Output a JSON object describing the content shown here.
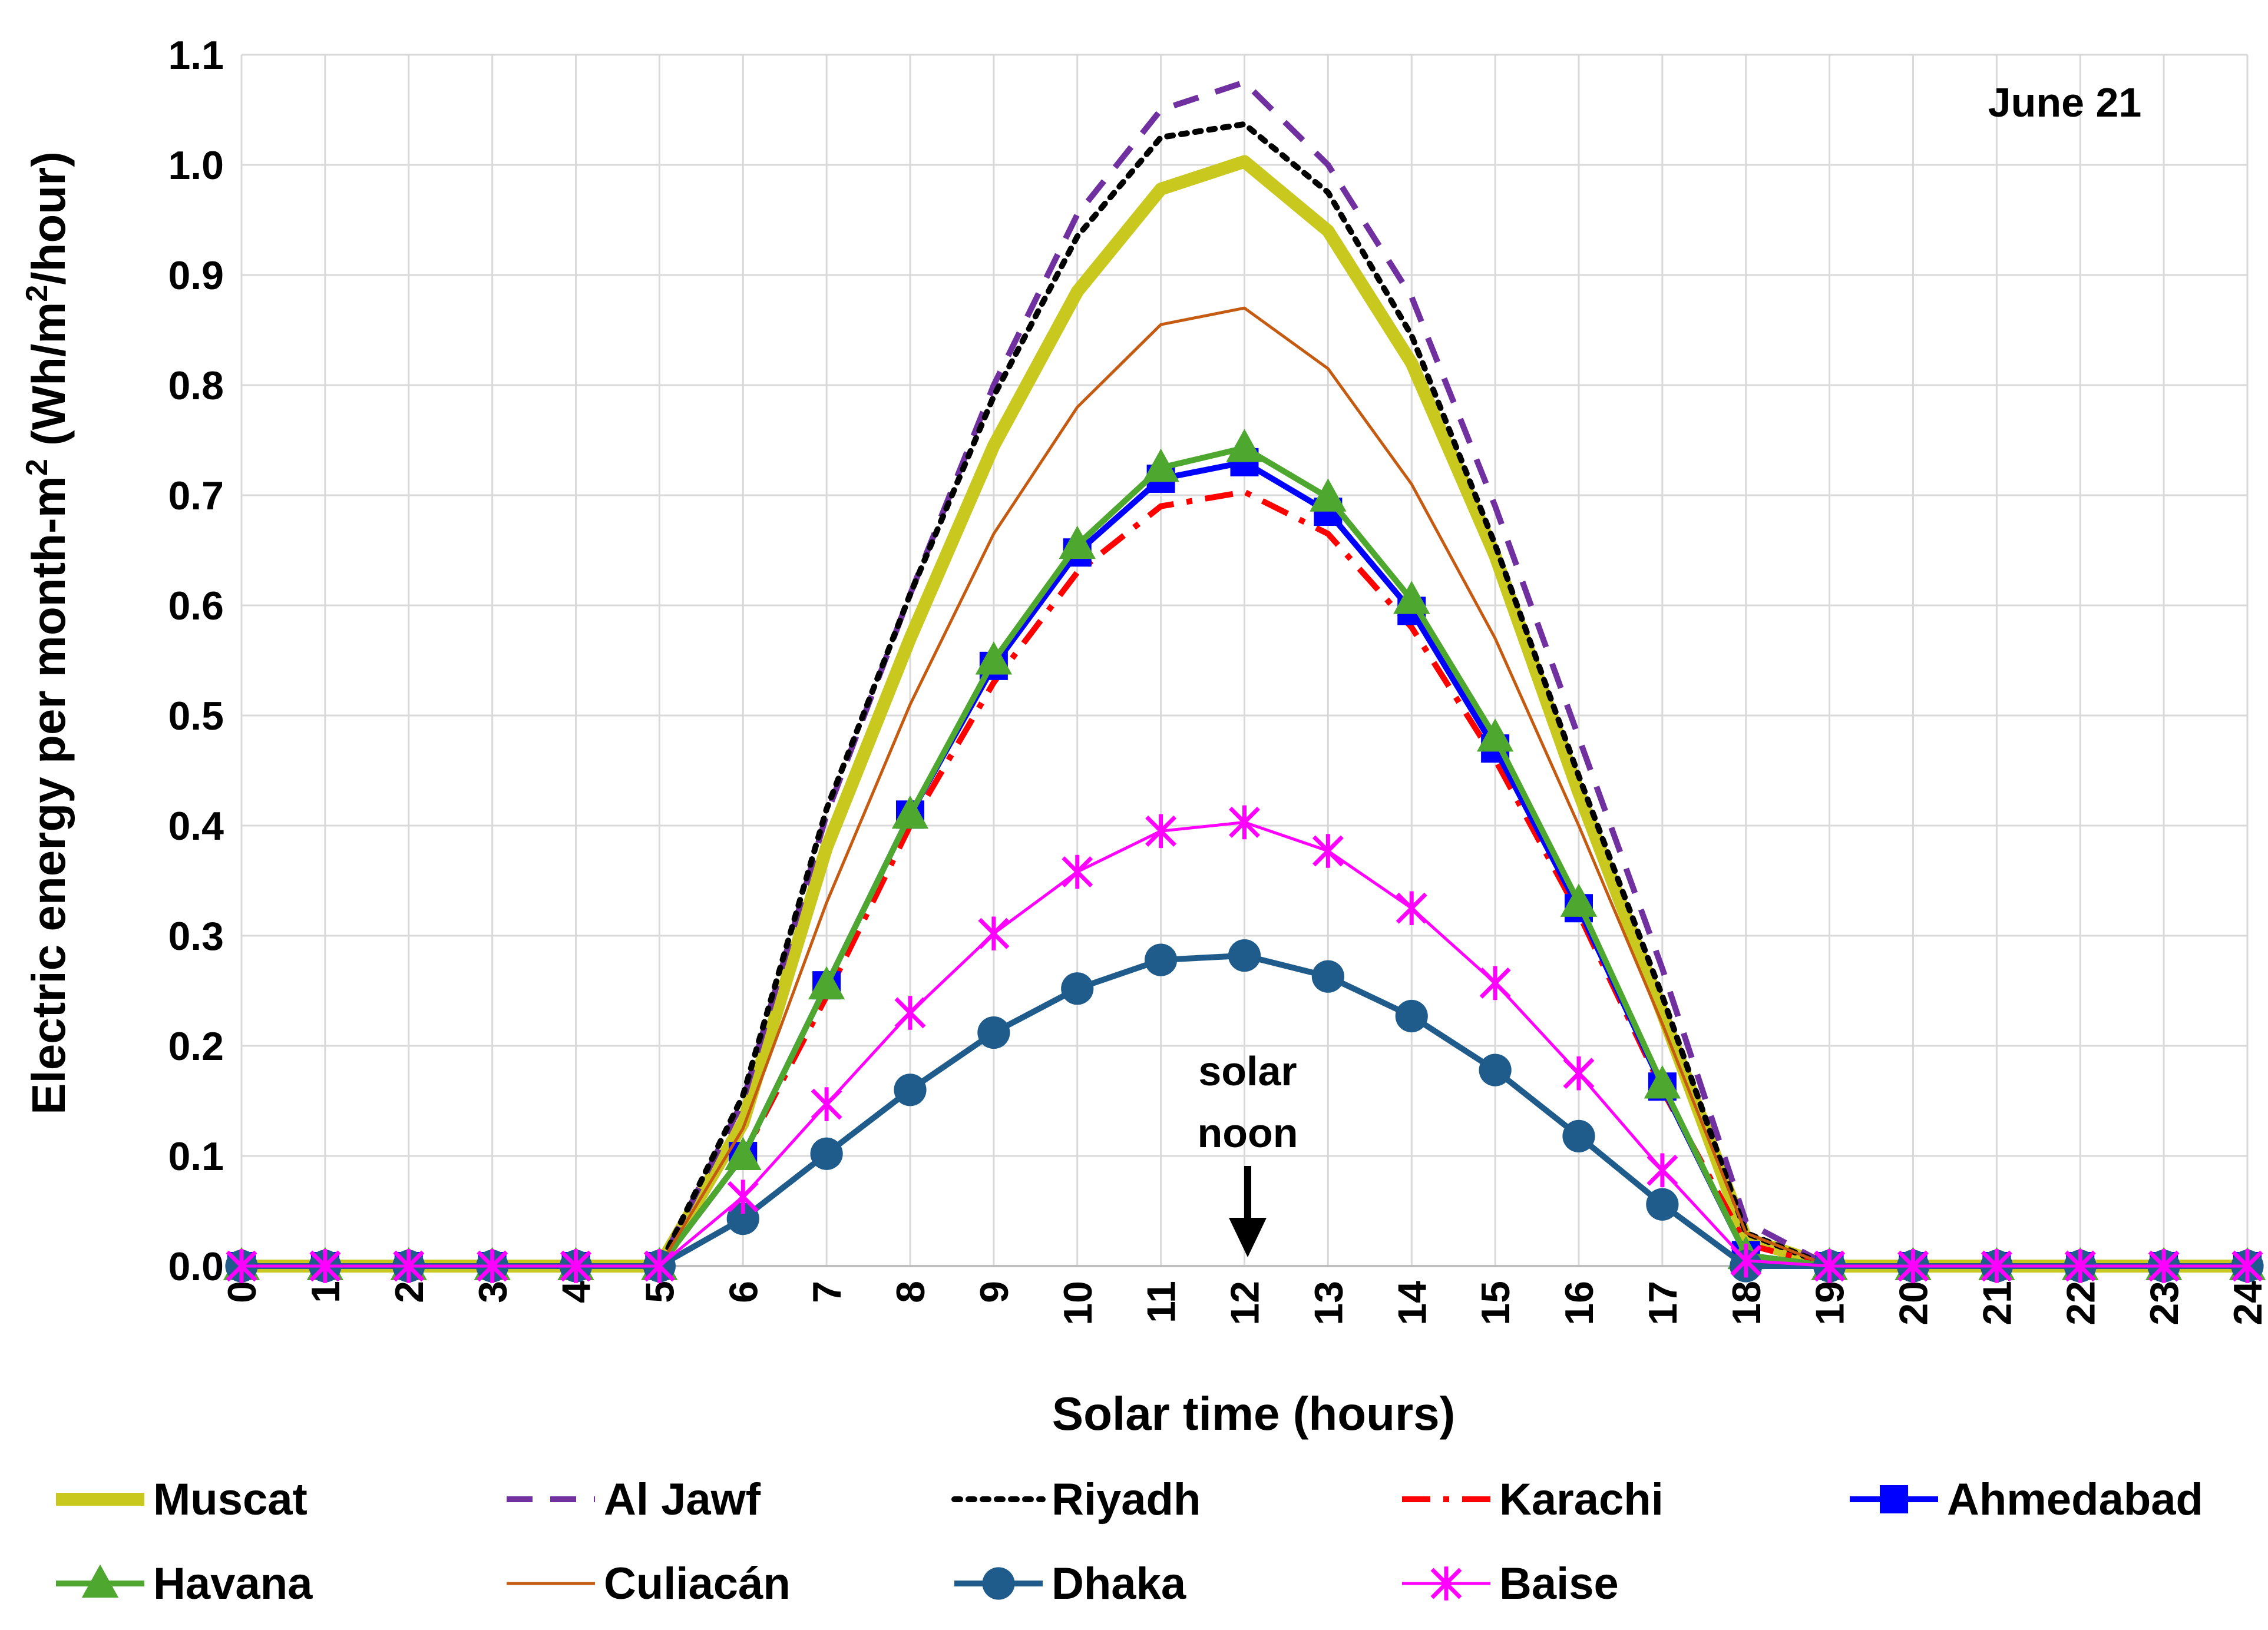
{
  "chart_data": {
    "type": "line",
    "title": "",
    "annotation_date": "June 21",
    "annotation_noon": [
      "solar",
      "noon"
    ],
    "xlabel": "Solar time (hours)",
    "ylabel": [
      "Electric energy per month-m",
      "2",
      " (Wh/m",
      "2",
      "/hour)"
    ],
    "xlim": [
      0,
      24
    ],
    "ylim": [
      0,
      1.1
    ],
    "x": [
      0,
      1,
      2,
      3,
      4,
      5,
      6,
      7,
      8,
      9,
      10,
      11,
      12,
      13,
      14,
      15,
      16,
      17,
      18,
      19,
      20,
      21,
      22,
      23,
      24
    ],
    "x_tick_labels": [
      "0",
      "1",
      "2",
      "3",
      "4",
      "5",
      "6",
      "7",
      "8",
      "9",
      "10",
      "11",
      "12",
      "13",
      "14",
      "15",
      "16",
      "17",
      "18",
      "19",
      "20",
      "21",
      "22",
      "23",
      "24"
    ],
    "y_ticks": [
      0.0,
      0.1,
      0.2,
      0.3,
      0.4,
      0.5,
      0.6,
      0.7,
      0.8,
      0.9,
      1.0,
      1.1
    ],
    "y_tick_labels": [
      "0.0",
      "0.1",
      "0.2",
      "0.3",
      "0.4",
      "0.5",
      "0.6",
      "0.7",
      "0.8",
      "0.9",
      "1.0",
      "1.1"
    ],
    "grid": true,
    "legend_position": "bottom",
    "series": [
      {
        "name": "Muscat",
        "color": "#c9c81e",
        "style": "thick",
        "marker": "none",
        "values": [
          0,
          0,
          0,
          0,
          0,
          0,
          0.13,
          0.38,
          0.57,
          0.745,
          0.885,
          0.978,
          1.003,
          0.94,
          0.82,
          0.645,
          0.43,
          0.23,
          0.025,
          0,
          0,
          0,
          0,
          0,
          0
        ]
      },
      {
        "name": "Al Jawf",
        "color": "#7030a0",
        "style": "dash",
        "marker": "none",
        "values": [
          0,
          0,
          0,
          0,
          0,
          0,
          0.15,
          0.41,
          0.61,
          0.8,
          0.955,
          1.05,
          1.075,
          1.0,
          0.88,
          0.69,
          0.48,
          0.27,
          0.04,
          0,
          0,
          0,
          0,
          0,
          0
        ]
      },
      {
        "name": "Riyadh",
        "color": "#000000",
        "style": "dot",
        "marker": "none",
        "values": [
          0,
          0,
          0,
          0,
          0,
          0,
          0.155,
          0.415,
          0.61,
          0.79,
          0.935,
          1.025,
          1.037,
          0.975,
          0.845,
          0.655,
          0.445,
          0.245,
          0.03,
          0,
          0,
          0,
          0,
          0,
          0
        ]
      },
      {
        "name": "Karachi",
        "color": "#ff0000",
        "style": "dashdot",
        "marker": "none",
        "values": [
          0,
          0,
          0,
          0,
          0,
          0,
          0.1,
          0.245,
          0.4,
          0.53,
          0.63,
          0.69,
          0.703,
          0.665,
          0.58,
          0.46,
          0.32,
          0.16,
          0.02,
          0,
          0,
          0,
          0,
          0,
          0
        ]
      },
      {
        "name": "Ahmedabad",
        "color": "#0000ff",
        "style": "solid",
        "marker": "square",
        "values": [
          0,
          0,
          0,
          0,
          0,
          0,
          0.1,
          0.255,
          0.41,
          0.545,
          0.648,
          0.715,
          0.73,
          0.685,
          0.595,
          0.47,
          0.325,
          0.163,
          0.01,
          0,
          0,
          0,
          0,
          0,
          0
        ]
      },
      {
        "name": "Havana",
        "color": "#4ea72e",
        "style": "solid",
        "marker": "triangle",
        "values": [
          0,
          0,
          0,
          0,
          0,
          0,
          0.1,
          0.255,
          0.41,
          0.55,
          0.655,
          0.725,
          0.743,
          0.698,
          0.605,
          0.48,
          0.33,
          0.165,
          0.01,
          0,
          0,
          0,
          0,
          0,
          0
        ]
      },
      {
        "name": "Culiacán",
        "color": "#c55a11",
        "style": "thin",
        "marker": "none",
        "values": [
          0,
          0,
          0,
          0,
          0,
          0,
          0.125,
          0.33,
          0.51,
          0.665,
          0.78,
          0.855,
          0.87,
          0.815,
          0.71,
          0.57,
          0.4,
          0.22,
          0.03,
          0,
          0,
          0,
          0,
          0,
          0
        ]
      },
      {
        "name": "Dhaka",
        "color": "#1f5c8b",
        "style": "solid",
        "marker": "circle",
        "values": [
          0,
          0,
          0,
          0,
          0,
          0,
          0.043,
          0.102,
          0.16,
          0.212,
          0.252,
          0.278,
          0.282,
          0.263,
          0.227,
          0.178,
          0.118,
          0.056,
          0,
          0,
          0,
          0,
          0,
          0,
          0
        ]
      },
      {
        "name": "Baise",
        "color": "#ff00ff",
        "style": "thin",
        "marker": "star",
        "values": [
          0,
          0,
          0,
          0,
          0,
          0,
          0.063,
          0.147,
          0.23,
          0.302,
          0.358,
          0.395,
          0.403,
          0.377,
          0.325,
          0.257,
          0.175,
          0.087,
          0.005,
          0,
          0,
          0,
          0,
          0,
          0
        ]
      }
    ]
  }
}
